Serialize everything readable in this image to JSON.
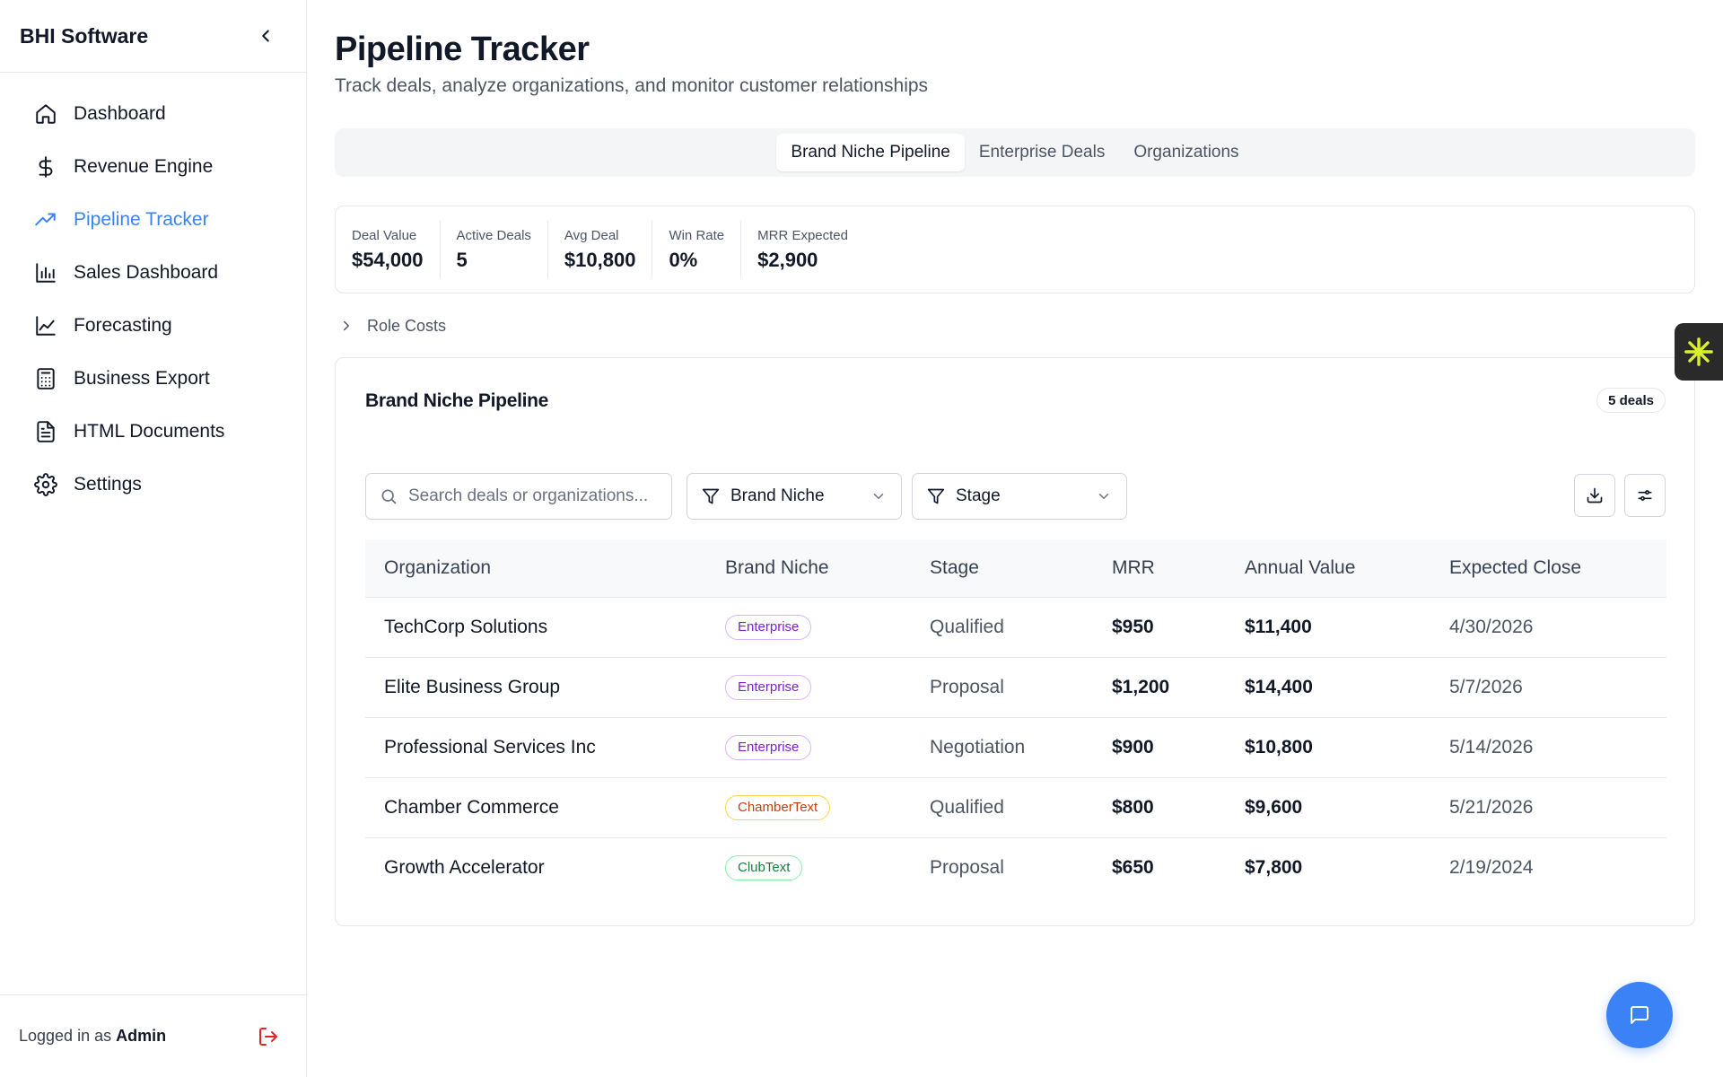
{
  "sidebar": {
    "brand": "BHI Software",
    "items": [
      {
        "label": "Dashboard",
        "icon": "home-icon"
      },
      {
        "label": "Revenue Engine",
        "icon": "dollar-icon"
      },
      {
        "label": "Pipeline Tracker",
        "icon": "trending-up-icon",
        "active": true
      },
      {
        "label": "Sales Dashboard",
        "icon": "bar-chart-icon"
      },
      {
        "label": "Forecasting",
        "icon": "line-chart-icon"
      },
      {
        "label": "Business Export",
        "icon": "calculator-icon"
      },
      {
        "label": "HTML Documents",
        "icon": "file-text-icon"
      },
      {
        "label": "Settings",
        "icon": "gear-icon"
      }
    ],
    "footer": {
      "logged_prefix": "Logged in as",
      "user": "Admin"
    }
  },
  "page": {
    "title": "Pipeline Tracker",
    "subtitle": "Track deals, analyze organizations, and monitor customer relationships"
  },
  "tabs": [
    {
      "label": "Brand Niche Pipeline",
      "active": true
    },
    {
      "label": "Enterprise Deals",
      "active": false
    },
    {
      "label": "Organizations",
      "active": false
    }
  ],
  "kpis": [
    {
      "label": "Deal Value",
      "value": "$54,000"
    },
    {
      "label": "Active Deals",
      "value": "5"
    },
    {
      "label": "Avg Deal",
      "value": "$10,800"
    },
    {
      "label": "Win Rate",
      "value": "0%"
    },
    {
      "label": "MRR Expected",
      "value": "$2,900"
    }
  ],
  "role_costs": {
    "label": "Role Costs"
  },
  "table_card": {
    "title": "Brand Niche Pipeline",
    "badge": "5 deals",
    "search_placeholder": "Search deals or organizations...",
    "brand_filter": "Brand Niche",
    "stage_filter": "Stage",
    "columns": [
      "Organization",
      "Brand Niche",
      "Stage",
      "MRR",
      "Annual Value",
      "Expected Close"
    ],
    "rows": [
      {
        "organization": "TechCorp Solutions",
        "niche": "Enterprise",
        "stage": "Qualified",
        "mrr": "$950",
        "annual": "$11,400",
        "close": "4/30/2026"
      },
      {
        "organization": "Elite Business Group",
        "niche": "Enterprise",
        "stage": "Proposal",
        "mrr": "$1,200",
        "annual": "$14,400",
        "close": "5/7/2026"
      },
      {
        "organization": "Professional Services Inc",
        "niche": "Enterprise",
        "stage": "Negotiation",
        "mrr": "$900",
        "annual": "$10,800",
        "close": "5/14/2026"
      },
      {
        "organization": "Chamber Commerce",
        "niche": "ChamberText",
        "stage": "Qualified",
        "mrr": "$800",
        "annual": "$9,600",
        "close": "5/21/2026"
      },
      {
        "organization": "Growth Accelerator",
        "niche": "ClubText",
        "stage": "Proposal",
        "mrr": "$650",
        "annual": "$7,800",
        "close": "2/19/2024"
      }
    ]
  },
  "colors": {
    "accent": "#3b82f6",
    "enterprise_text": "#7e22ce",
    "enterprise_border": "#d8b4fe",
    "chambertext_text": "#c2410c",
    "chambertext_border": "#fcd34d",
    "clubtext_text": "#15803d",
    "clubtext_border": "#86efac",
    "logout": "#dc2626"
  }
}
